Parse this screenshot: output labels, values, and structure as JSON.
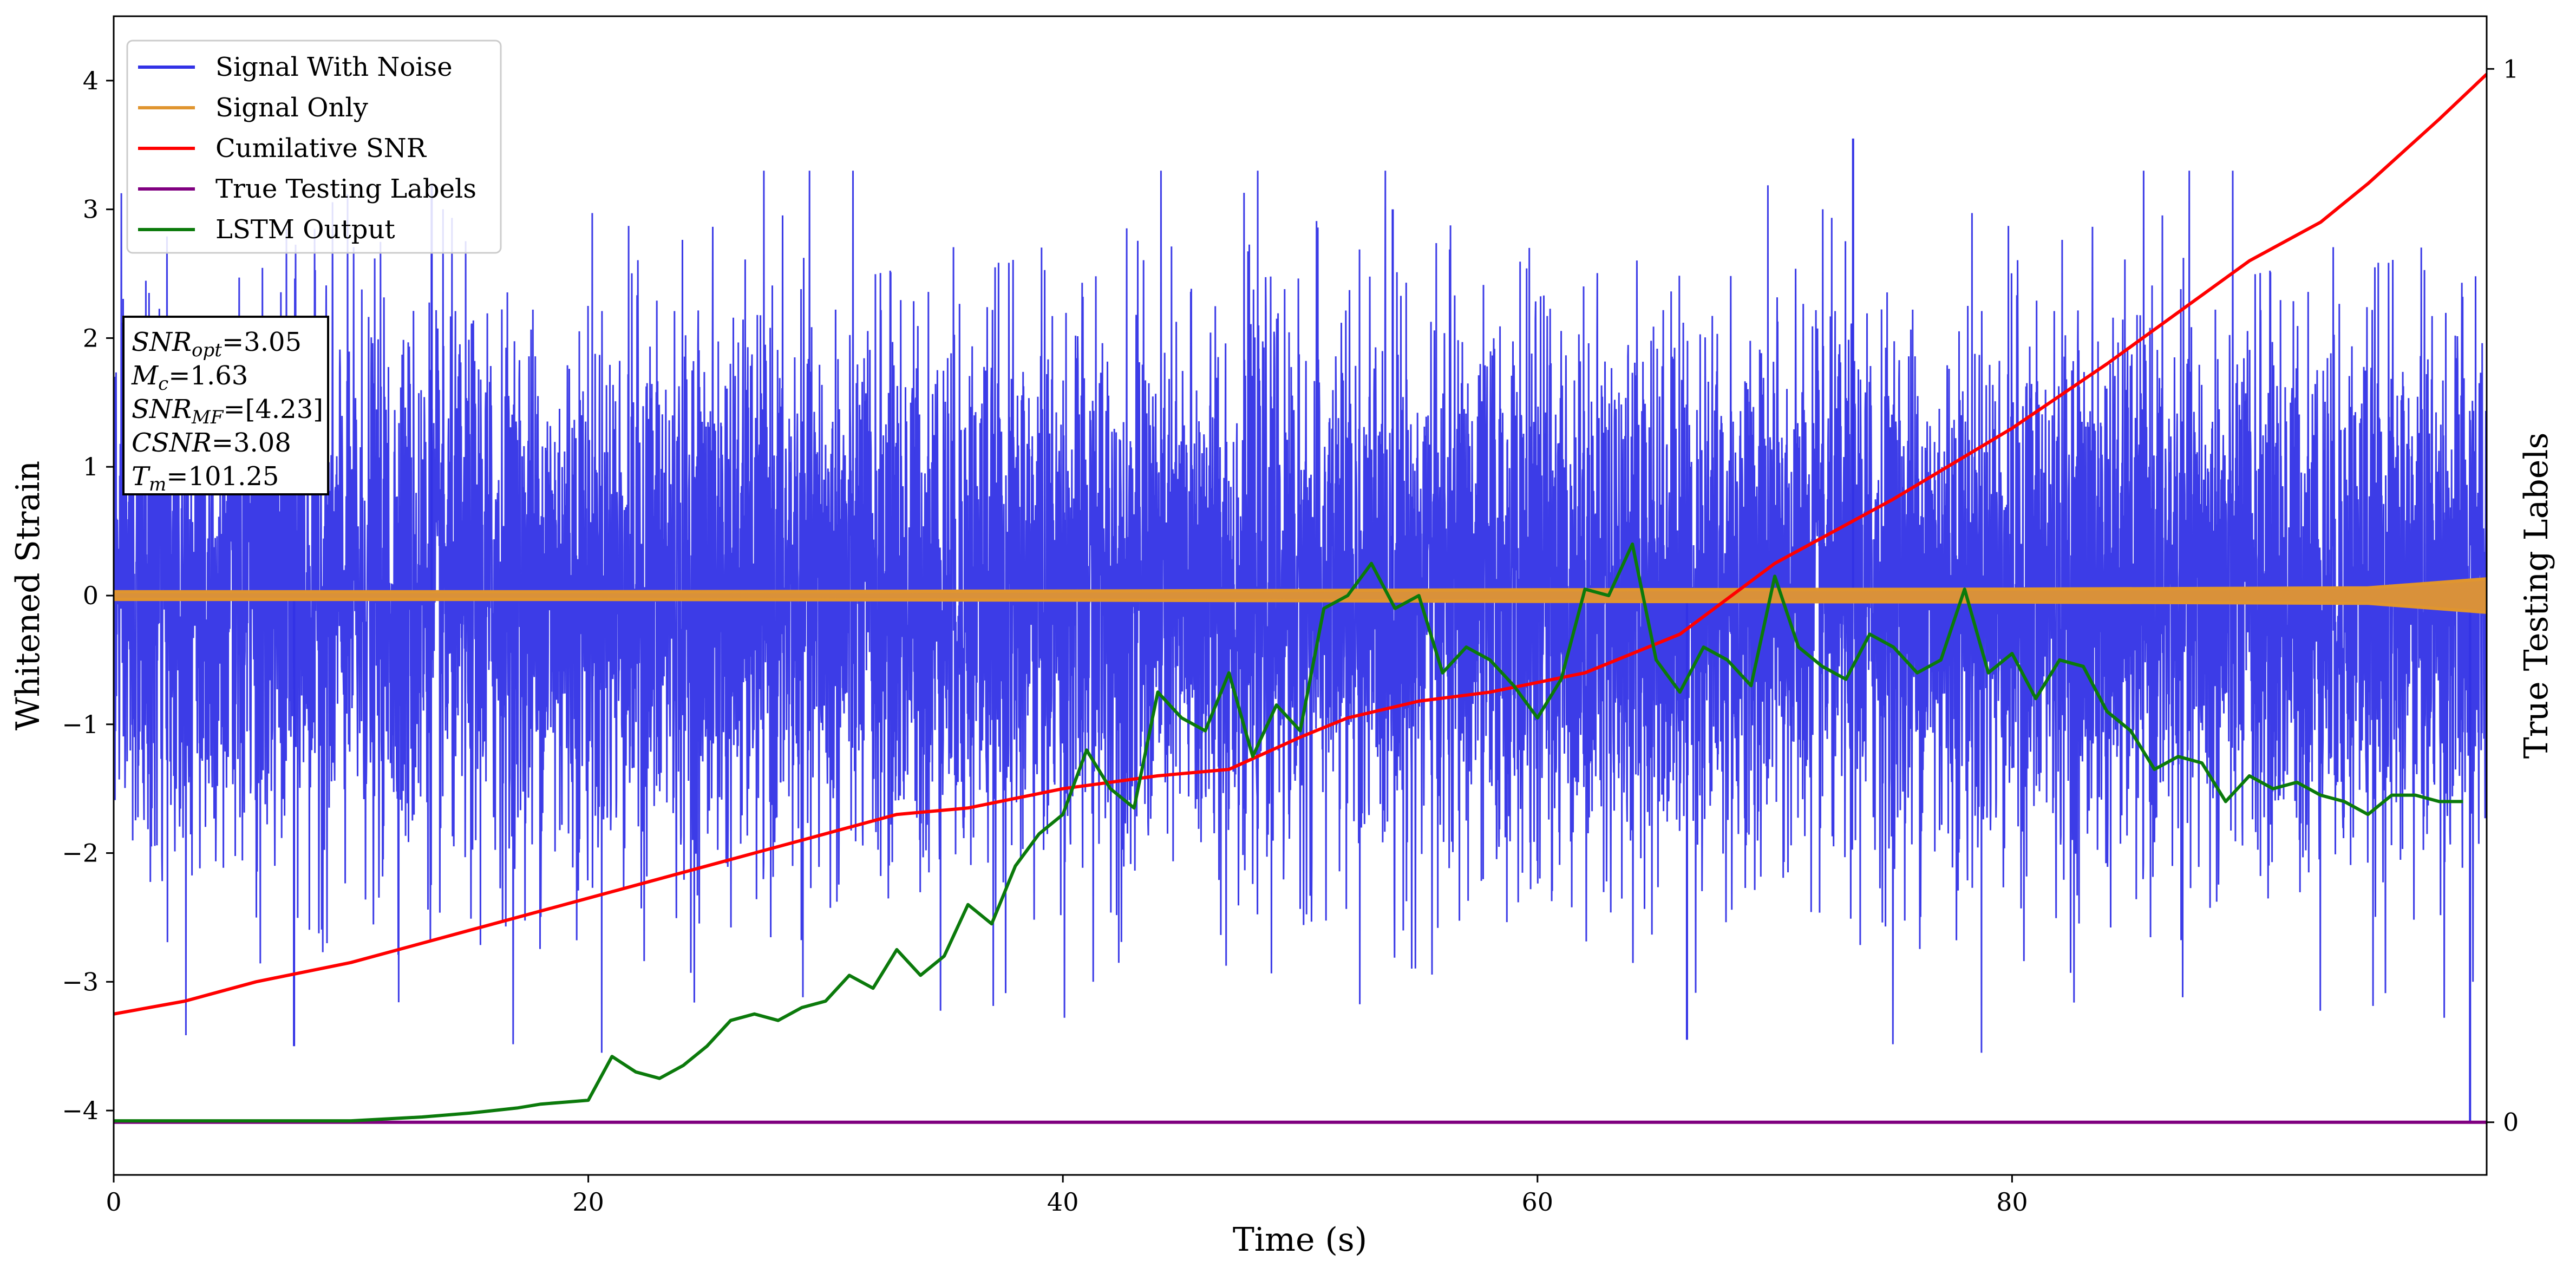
{
  "chart_data": {
    "type": "line",
    "xlabel": "Time (s)",
    "ylabel": "Whitened Strain",
    "y2label": "True Testing Labels",
    "xlim": [
      0,
      100
    ],
    "ylim": [
      -4.5,
      4.5
    ],
    "y2lim": [
      -0.05,
      1.05
    ],
    "x_ticks": [
      0,
      20,
      40,
      60,
      80
    ],
    "y_ticks": [
      -4,
      -3,
      -2,
      -1,
      0,
      1,
      2,
      3,
      4
    ],
    "y2_ticks": [
      0,
      1
    ],
    "grid": false,
    "legend_position": "top-left",
    "colors": {
      "signal_with_noise": "#3232e6",
      "signal_only": "#e0952f",
      "cumulative_snr": "#ff0000",
      "true_labels": "#800080",
      "lstm_output": "#0b7a0b"
    },
    "series": [
      {
        "name": "Signal With Noise",
        "kind": "noise",
        "amplitude_std": 1.0,
        "peak_max": 3.55,
        "peak_min": -4.1,
        "x_range": [
          0,
          100
        ]
      },
      {
        "name": "Signal Only",
        "kind": "band",
        "x": [
          0,
          20,
          40,
          60,
          80,
          95,
          100
        ],
        "half_width": [
          0.03,
          0.03,
          0.035,
          0.045,
          0.05,
          0.06,
          0.13
        ]
      },
      {
        "name": "Cumilative SNR",
        "axis": "left",
        "x": [
          0,
          3,
          6,
          10,
          15,
          20,
          25,
          30,
          33,
          36,
          40,
          44,
          47,
          50,
          52,
          55,
          58,
          62,
          66,
          70,
          75,
          80,
          84,
          87,
          90,
          93,
          95,
          98,
          100
        ],
        "y": [
          -3.25,
          -3.15,
          -3.0,
          -2.85,
          -2.6,
          -2.35,
          -2.1,
          -1.85,
          -1.7,
          -1.65,
          -1.5,
          -1.4,
          -1.35,
          -1.1,
          -0.95,
          -0.82,
          -0.75,
          -0.6,
          -0.3,
          0.25,
          0.75,
          1.3,
          1.8,
          2.2,
          2.6,
          2.9,
          3.2,
          3.7,
          4.05
        ]
      },
      {
        "name": "True Testing Labels",
        "axis": "right",
        "x": [
          0,
          99.5,
          99.5,
          100
        ],
        "y": [
          0,
          0,
          0,
          0
        ]
      },
      {
        "name": "LSTM Output",
        "axis": "left",
        "x": [
          0,
          10,
          13,
          15,
          17,
          18,
          20,
          21,
          22,
          23,
          24,
          25,
          26,
          27,
          28,
          29,
          30,
          31,
          32,
          33,
          34,
          35,
          36,
          37,
          38,
          39,
          40,
          41,
          42,
          43,
          44,
          45,
          46,
          47,
          48,
          49,
          50,
          51,
          52,
          53,
          54,
          55,
          56,
          57,
          58,
          59,
          60,
          61,
          62,
          63,
          64,
          65,
          66,
          67,
          68,
          69,
          70,
          71,
          72,
          73,
          74,
          75,
          76,
          77,
          78,
          79,
          80,
          81,
          82,
          83,
          84,
          85,
          86,
          87,
          88,
          89,
          90,
          91,
          92,
          93,
          94,
          95,
          96,
          97,
          98,
          99
        ],
        "y": [
          -4.08,
          -4.08,
          -4.05,
          -4.02,
          -3.98,
          -3.95,
          -3.92,
          -3.58,
          -3.7,
          -3.75,
          -3.65,
          -3.5,
          -3.3,
          -3.25,
          -3.3,
          -3.2,
          -3.15,
          -2.95,
          -3.05,
          -2.75,
          -2.95,
          -2.8,
          -2.4,
          -2.55,
          -2.1,
          -1.85,
          -1.7,
          -1.2,
          -1.5,
          -1.65,
          -0.75,
          -0.95,
          -1.05,
          -0.6,
          -1.25,
          -0.85,
          -1.05,
          -0.1,
          0.0,
          0.25,
          -0.1,
          0.0,
          -0.6,
          -0.4,
          -0.5,
          -0.7,
          -0.95,
          -0.65,
          0.05,
          0.0,
          0.4,
          -0.5,
          -0.75,
          -0.4,
          -0.5,
          -0.7,
          0.15,
          -0.4,
          -0.55,
          -0.65,
          -0.3,
          -0.4,
          -0.6,
          -0.5,
          0.05,
          -0.6,
          -0.45,
          -0.8,
          -0.5,
          -0.55,
          -0.9,
          -1.05,
          -1.35,
          -1.25,
          -1.3,
          -1.6,
          -1.4,
          -1.5,
          -1.45,
          -1.55,
          -1.6,
          -1.7,
          -1.55,
          -1.55,
          -1.6,
          -1.6
        ]
      }
    ],
    "annotation_lines": [
      {
        "label": "SNR",
        "sub": "opt",
        "value": "=3.05"
      },
      {
        "label": "M",
        "sub": "c",
        "value": "=1.63"
      },
      {
        "label": "SNR",
        "sub": "MF",
        "value": "=[4.23]"
      },
      {
        "label": "CSNR",
        "sub": "",
        "value": "=3.08"
      },
      {
        "label": "T",
        "sub": "m",
        "value": "=101.25"
      }
    ]
  }
}
